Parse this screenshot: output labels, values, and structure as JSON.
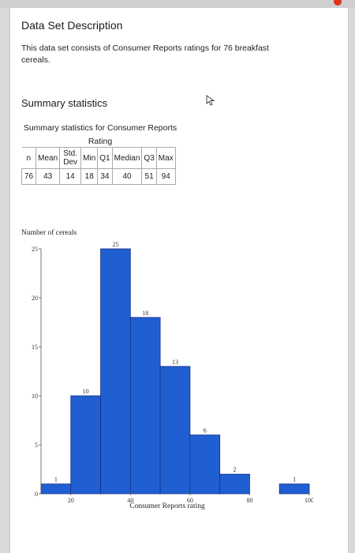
{
  "section_title": "Data Set Description",
  "description": "This data set consists of Consumer Reports ratings for 76 breakfast cereals.",
  "summary_heading": "Summary statistics",
  "table_caption": "Summary statistics for Consumer Reports Rating",
  "table": {
    "headers": [
      "n",
      "Mean",
      "Std. Dev",
      "Min",
      "Q1",
      "Median",
      "Q3",
      "Max"
    ],
    "row": [
      "76",
      "43",
      "14",
      "18",
      "34",
      "40",
      "51",
      "94"
    ]
  },
  "colors": {
    "bar": "#1f5fd1",
    "bar_stroke": "#14308a",
    "card": "#ffffff",
    "accent_dot": "#e0311f"
  },
  "chart_data": {
    "type": "bar",
    "ylabel": "Number of cereals",
    "xlabel": "Consumer Reports rating",
    "bin_edges": [
      10,
      20,
      30,
      40,
      50,
      60,
      70,
      80,
      90,
      100
    ],
    "values": [
      1,
      10,
      25,
      18,
      13,
      6,
      2,
      0,
      1
    ],
    "data_labels": [
      "1",
      "10",
      "25",
      "18",
      "13",
      "6",
      "2",
      "",
      "1"
    ],
    "xlim": [
      10,
      100
    ],
    "ylim": [
      0,
      25
    ],
    "xticks": [
      20,
      40,
      60,
      80,
      100
    ],
    "yticks": [
      0,
      5,
      10,
      15,
      20,
      25
    ],
    "grid": false
  }
}
